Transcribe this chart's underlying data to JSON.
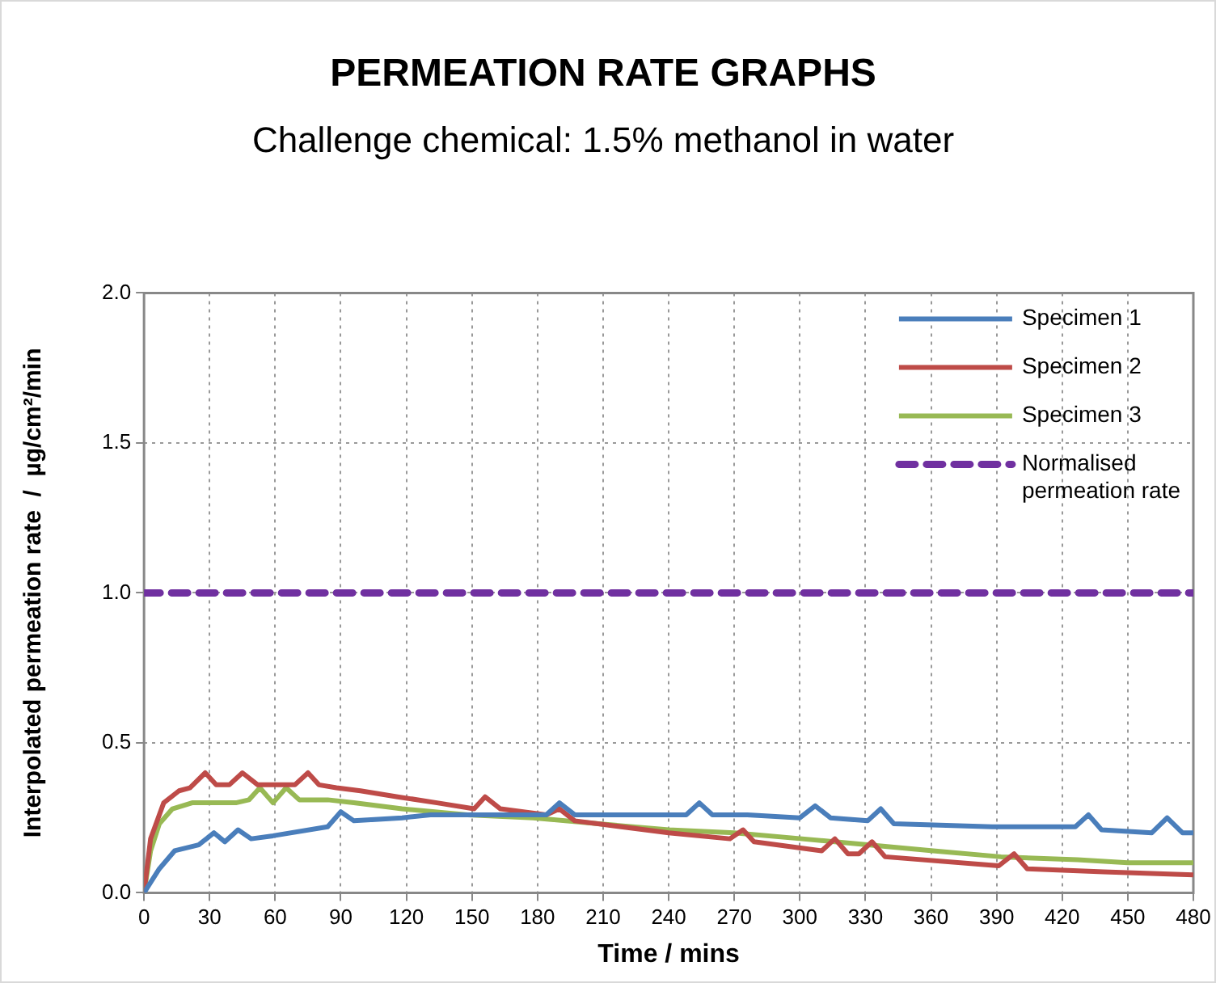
{
  "chart_data": {
    "type": "line",
    "title": "PERMEATION RATE GRAPHS",
    "subtitle": "Challenge chemical: 1.5% methanol in water",
    "xlabel": "Time / mins",
    "ylabel": "Interpolated permeation rate  /  µg/cm²/min",
    "xlim": [
      0,
      480
    ],
    "xticks": [
      0,
      30,
      60,
      90,
      120,
      150,
      180,
      210,
      240,
      270,
      300,
      330,
      360,
      390,
      420,
      450,
      480
    ],
    "ylim": [
      0,
      2
    ],
    "yticks": [
      {
        "value": 0,
        "label": "0.0"
      },
      {
        "value": 0.5,
        "label": "0.5"
      },
      {
        "value": 1,
        "label": "1.0"
      },
      {
        "value": 1.5,
        "label": "1.5"
      },
      {
        "value": 2,
        "label": "2.0"
      }
    ],
    "grid": true,
    "legend": "top right",
    "marker": "none",
    "series": [
      {
        "name": "Specimen 1",
        "color": "#4a7ebb",
        "line_style": "solid",
        "x": [
          0,
          7,
          14,
          25,
          32,
          37,
          43,
          49,
          59,
          84,
          90,
          96,
          118,
          131,
          148,
          184,
          190,
          197,
          240,
          248,
          254,
          260,
          276,
          300,
          307,
          314,
          331,
          337,
          343,
          388,
          398,
          426,
          432,
          438,
          461,
          468,
          475,
          480
        ],
        "values": [
          0,
          0.08,
          0.14,
          0.16,
          0.2,
          0.17,
          0.21,
          0.18,
          0.19,
          0.22,
          0.27,
          0.24,
          0.25,
          0.26,
          0.26,
          0.26,
          0.3,
          0.26,
          0.26,
          0.26,
          0.3,
          0.26,
          0.26,
          0.25,
          0.29,
          0.25,
          0.24,
          0.28,
          0.23,
          0.22,
          0.22,
          0.22,
          0.26,
          0.21,
          0.2,
          0.25,
          0.2,
          0.2
        ]
      },
      {
        "name": "Specimen 2",
        "color": "#be4b48",
        "line_style": "solid",
        "x": [
          0,
          3,
          9,
          16,
          21,
          28,
          33,
          39,
          45,
          52,
          69,
          75,
          80,
          88,
          99,
          116,
          134,
          151,
          156,
          163,
          184,
          190,
          197,
          240,
          268,
          274,
          279,
          310,
          316,
          322,
          327,
          333,
          339,
          391,
          398,
          404,
          439,
          480
        ],
        "values": [
          0,
          0.18,
          0.3,
          0.34,
          0.35,
          0.4,
          0.36,
          0.36,
          0.4,
          0.36,
          0.36,
          0.4,
          0.36,
          0.35,
          0.34,
          0.32,
          0.3,
          0.28,
          0.32,
          0.28,
          0.26,
          0.28,
          0.24,
          0.2,
          0.18,
          0.21,
          0.17,
          0.14,
          0.18,
          0.13,
          0.13,
          0.17,
          0.12,
          0.09,
          0.13,
          0.08,
          0.07,
          0.06
        ]
      },
      {
        "name": "Specimen 3",
        "color": "#98b954",
        "line_style": "solid",
        "x": [
          0,
          3,
          7,
          13,
          22,
          32,
          42,
          48,
          53,
          59,
          65,
          71,
          84,
          96,
          118,
          148,
          178,
          208,
          240,
          270,
          301,
          331,
          361,
          392,
          427,
          450,
          480
        ],
        "values": [
          0,
          0.14,
          0.23,
          0.28,
          0.3,
          0.3,
          0.3,
          0.31,
          0.35,
          0.3,
          0.35,
          0.31,
          0.31,
          0.3,
          0.28,
          0.26,
          0.25,
          0.23,
          0.21,
          0.2,
          0.18,
          0.16,
          0.14,
          0.12,
          0.11,
          0.1,
          0.1
        ]
      },
      {
        "name": "Normalised permeation rate",
        "color": "#7030a0",
        "line_style": "dashed",
        "x": [
          0,
          480
        ],
        "values": [
          1,
          1
        ]
      }
    ]
  }
}
